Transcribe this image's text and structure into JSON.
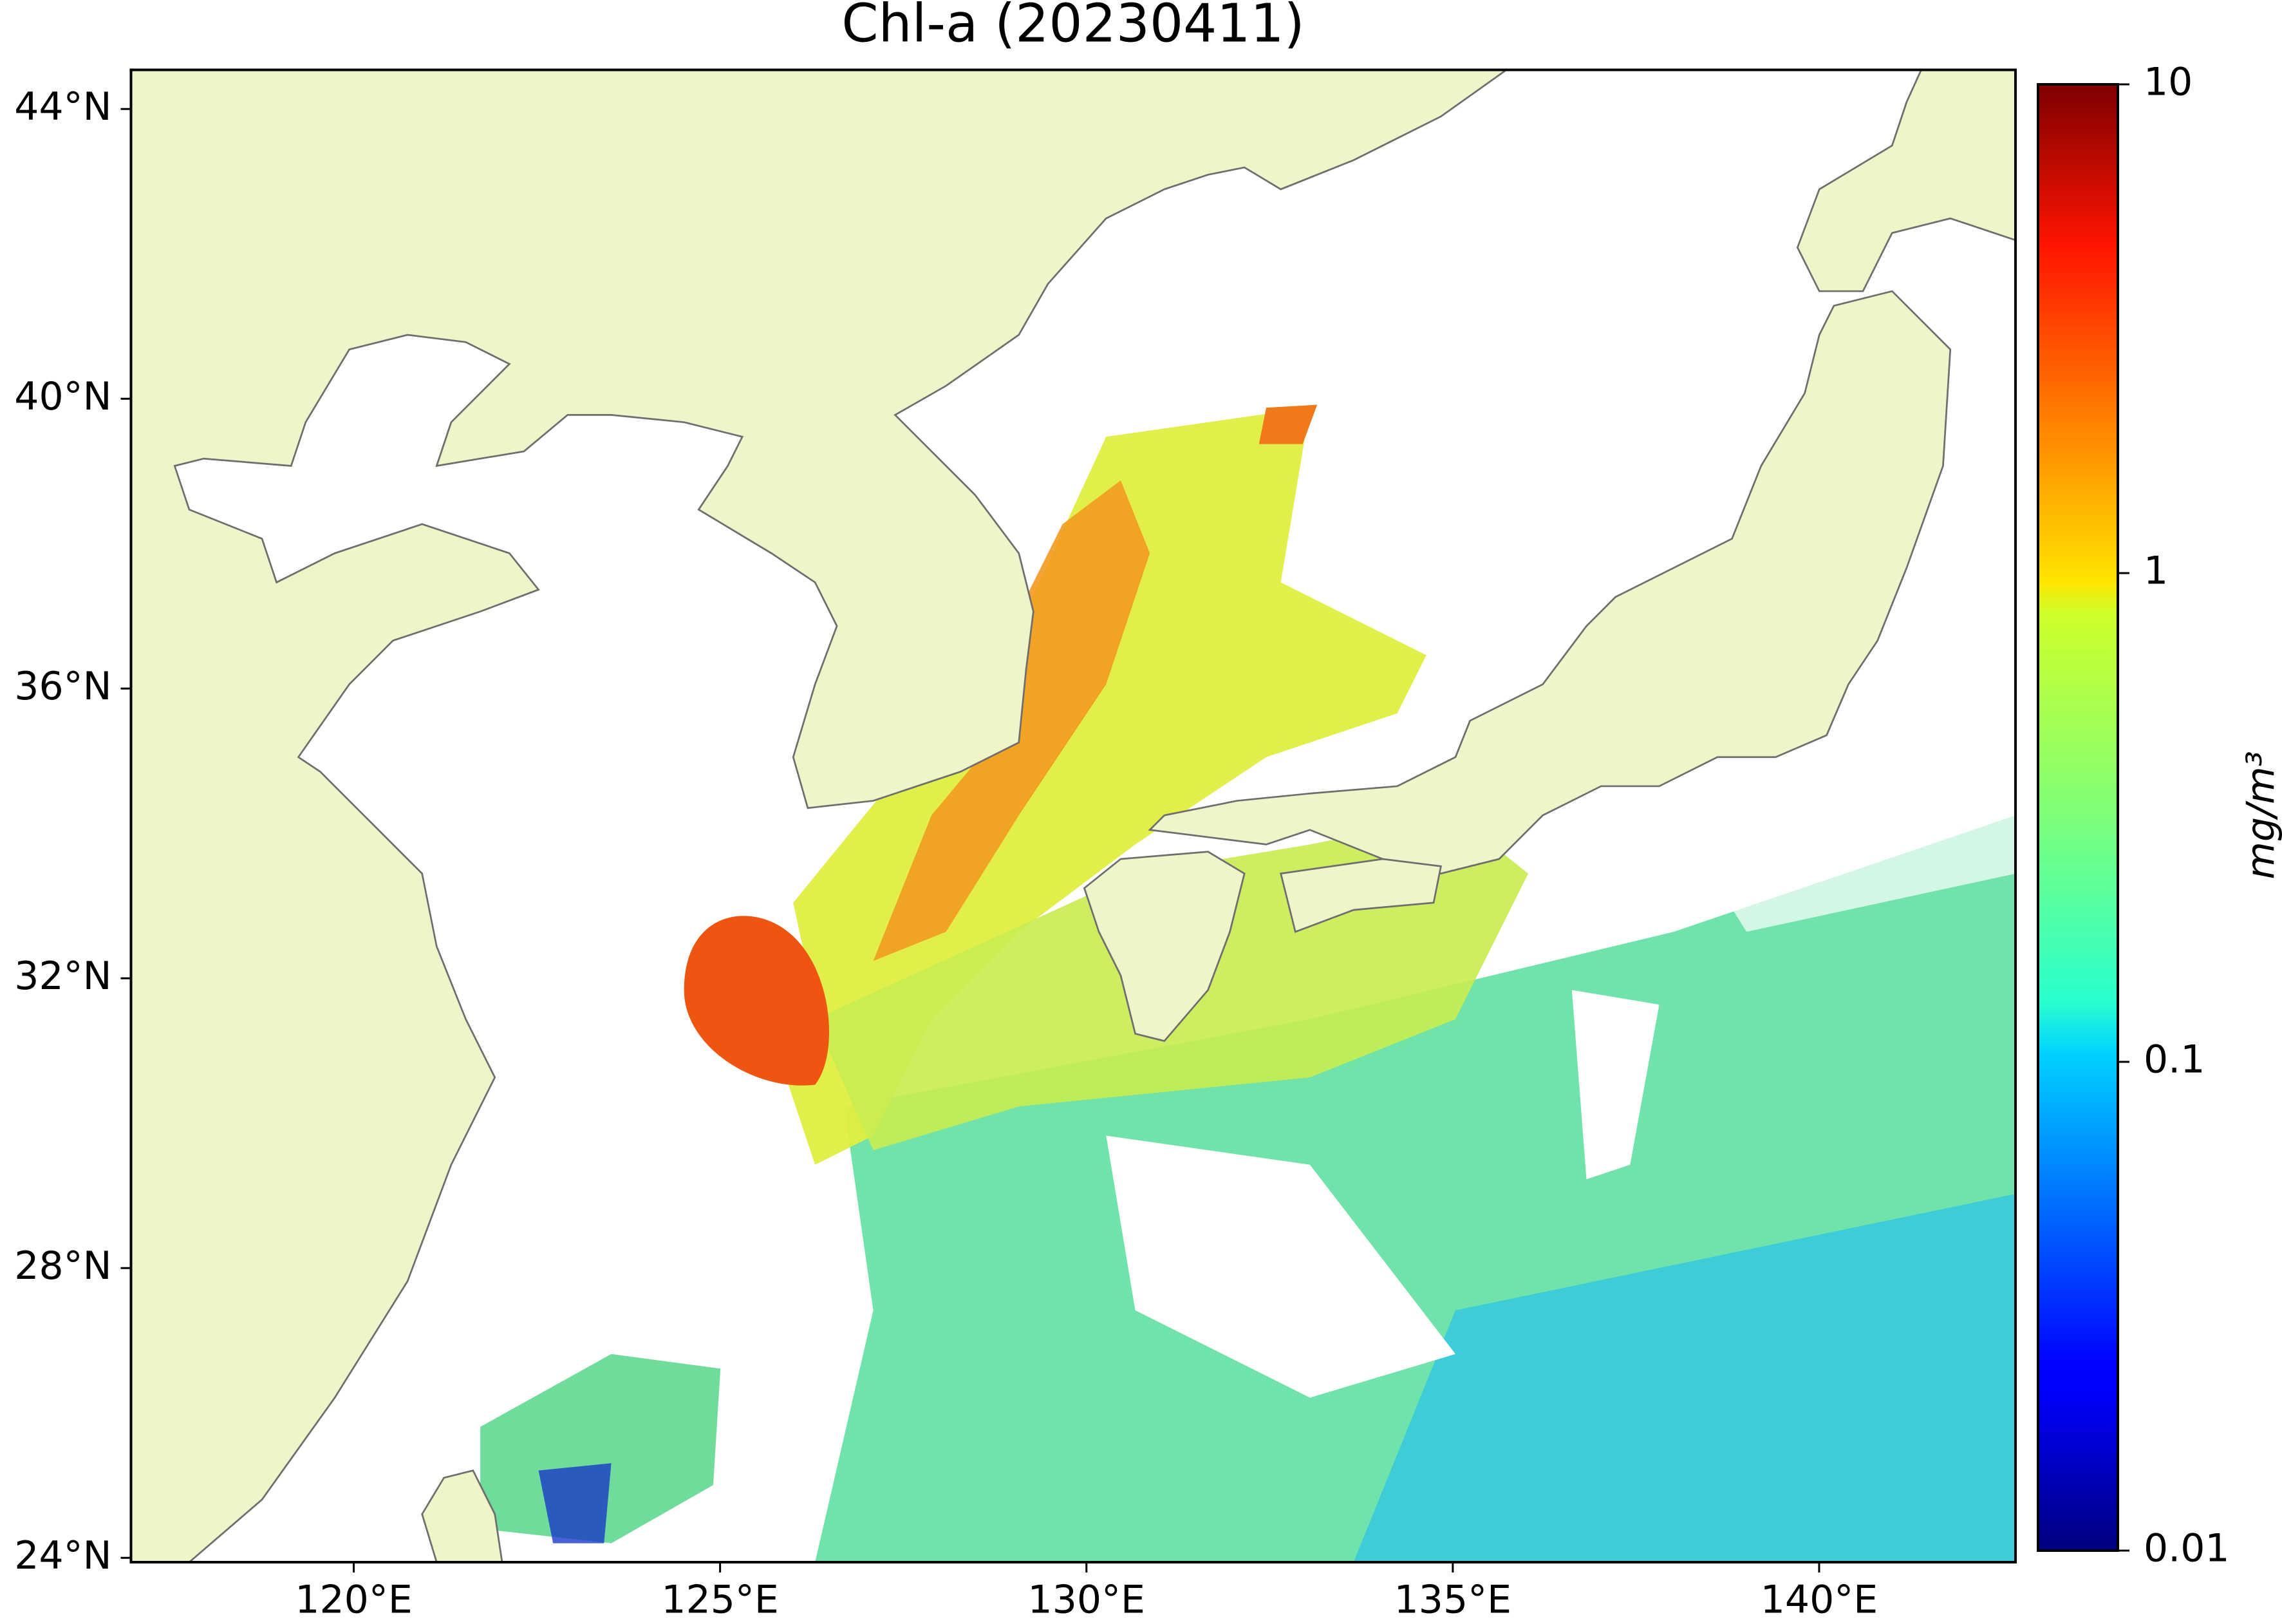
{
  "title": "Chl-a (20230411)",
  "map": {
    "lon_range": [
      116.96,
      142.68
    ],
    "lat_range": [
      23.94,
      44.54
    ],
    "lon_ticks": [
      {
        "value": 120,
        "label": "120°E"
      },
      {
        "value": 125,
        "label": "125°E"
      },
      {
        "value": 130,
        "label": "130°E"
      },
      {
        "value": 135,
        "label": "135°E"
      },
      {
        "value": 140,
        "label": "140°E"
      }
    ],
    "lat_ticks": [
      {
        "value": 24,
        "label": "24°N"
      },
      {
        "value": 28,
        "label": "28°N"
      },
      {
        "value": 32,
        "label": "32°N"
      },
      {
        "value": 36,
        "label": "36°N"
      },
      {
        "value": 40,
        "label": "40°N"
      },
      {
        "value": 44,
        "label": "44°N"
      }
    ]
  },
  "colorbar": {
    "label": "mg/m³",
    "scale": "log",
    "colormap": "jet",
    "range": [
      0.01,
      10
    ],
    "ticks": [
      0.01,
      0.1,
      1,
      10
    ]
  }
}
